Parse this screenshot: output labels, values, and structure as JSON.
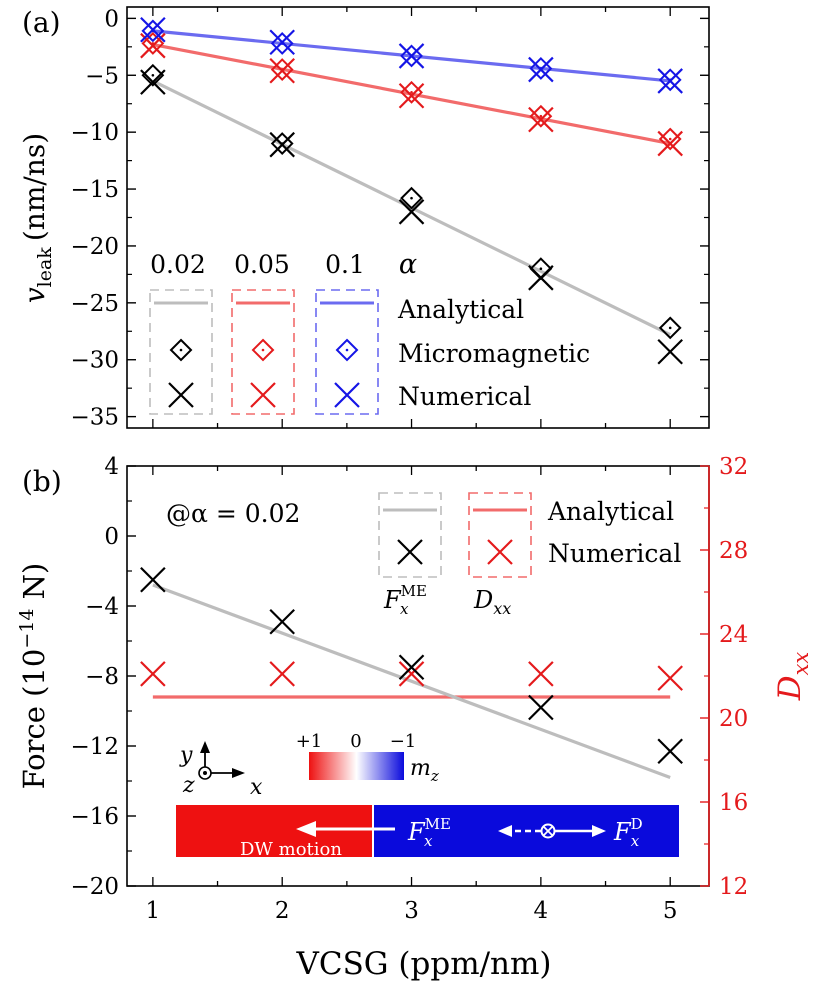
{
  "colors": {
    "black": "#000000",
    "gray": "#bdbdbd",
    "red": "#e41a1c",
    "redline": "#f26b6b",
    "blueline": "#6b6bf0",
    "blue": "#1515e6",
    "dw_red": "#ee1111",
    "dw_blue": "#0a0adc"
  },
  "chart_data": [
    {
      "panel_label": "(a)",
      "type": "line",
      "ylabel_main": "v",
      "ylabel_sub": "leak",
      "ylabel_units": "(nm/ns)",
      "xlim": [
        0.8,
        5.3
      ],
      "ylim": [
        -36,
        1
      ],
      "y_ticks": [
        0,
        -5,
        -10,
        -15,
        -20,
        -25,
        -30,
        -35
      ],
      "y_tick_labels": [
        "0",
        "−5",
        "−10",
        "−15",
        "−20",
        "−25",
        "−30",
        "−35"
      ],
      "x_ticks": [
        1,
        2,
        3,
        4,
        5
      ],
      "x": [
        1,
        2,
        3,
        4,
        5
      ],
      "series": [
        {
          "alpha": "0.02",
          "color_key": "gray",
          "marker_color_key": "black",
          "analytical_x": [
            1,
            5
          ],
          "analytical_y": [
            -5.5,
            -27.8
          ],
          "micromagnetic": [
            -5.0,
            -11.0,
            -15.8,
            -22.0,
            -27.2
          ],
          "numerical": [
            -5.6,
            -11.1,
            -17.0,
            -22.8,
            -29.3
          ]
        },
        {
          "alpha": "0.05",
          "color_key": "redline",
          "marker_color_key": "red",
          "analytical_x": [
            1,
            5
          ],
          "analytical_y": [
            -2.3,
            -11.0
          ],
          "micromagnetic": [
            -2.2,
            -4.5,
            -6.5,
            -8.6,
            -10.6
          ],
          "numerical": [
            -2.4,
            -4.6,
            -6.8,
            -8.9,
            -11.0
          ]
        },
        {
          "alpha": "0.1",
          "color_key": "blueline",
          "marker_color_key": "blue",
          "analytical_x": [
            1,
            5
          ],
          "analytical_y": [
            -1.1,
            -5.5
          ],
          "micromagnetic": [
            -1.1,
            -2.2,
            -3.3,
            -4.4,
            -5.4
          ],
          "numerical": [
            -1.0,
            -2.1,
            -3.3,
            -4.5,
            -5.5
          ]
        }
      ],
      "legend": {
        "alpha_symbol": "α",
        "rows": [
          "Analytical",
          "Micromagnetic",
          "Numerical"
        ]
      }
    },
    {
      "panel_label": "(b)",
      "type": "line",
      "annotation": "@α = 0.02",
      "xlabel": "VCSG (ppm/nm)",
      "x_ticks": [
        1,
        2,
        3,
        4,
        5
      ],
      "x_tick_labels": [
        "1",
        "2",
        "3",
        "4",
        "5"
      ],
      "xlim": [
        0.8,
        5.3
      ],
      "ylabel_left": "Force (10",
      "ylabel_left_exp": "−14",
      "ylabel_left_end": " N)",
      "ylim_left": [
        -20,
        4
      ],
      "y_ticks_left": [
        4,
        0,
        -4,
        -8,
        -12,
        -16,
        -20
      ],
      "y_tick_labels_left": [
        "4",
        "0",
        "−4",
        "−8",
        "−12",
        "−16",
        "−20"
      ],
      "ylabel_right": "D",
      "ylabel_right_sub": "xx",
      "ylim_right": [
        12,
        32
      ],
      "y_ticks_right": [
        32,
        28,
        24,
        20,
        16,
        12
      ],
      "y_tick_labels_right": [
        "32",
        "28",
        "24",
        "20",
        "16",
        "12"
      ],
      "x": [
        1,
        2,
        3,
        4,
        5
      ],
      "fme_analytical_x": [
        1,
        5
      ],
      "fme_analytical_y": [
        -2.8,
        -13.8
      ],
      "fme_numerical": [
        -2.5,
        -4.9,
        -7.5,
        -9.8,
        -12.3
      ],
      "dxx_analytical_x": [
        1,
        5
      ],
      "dxx_analytical_y": [
        21.0,
        21.0
      ],
      "dxx_numerical": [
        22.1,
        22.1,
        22.1,
        22.1,
        21.9
      ],
      "legend": {
        "rows": [
          "Analytical",
          "Numerical"
        ],
        "col1_main": "F",
        "col1_sub": "x",
        "col1_sup": "ME",
        "col2_main": "D",
        "col2_sub": "xx"
      },
      "inset": {
        "axis_y": "y",
        "axis_x": "x",
        "axis_z": "z",
        "cbar_plus": "+1",
        "cbar_zero": "0",
        "cbar_minus": "−1",
        "cbar_label_main": "m",
        "cbar_label_sub": "z",
        "dw_motion": "DW motion",
        "f_main": "F",
        "f_sub": "x",
        "f_me": "ME",
        "f_d": "D"
      }
    }
  ]
}
